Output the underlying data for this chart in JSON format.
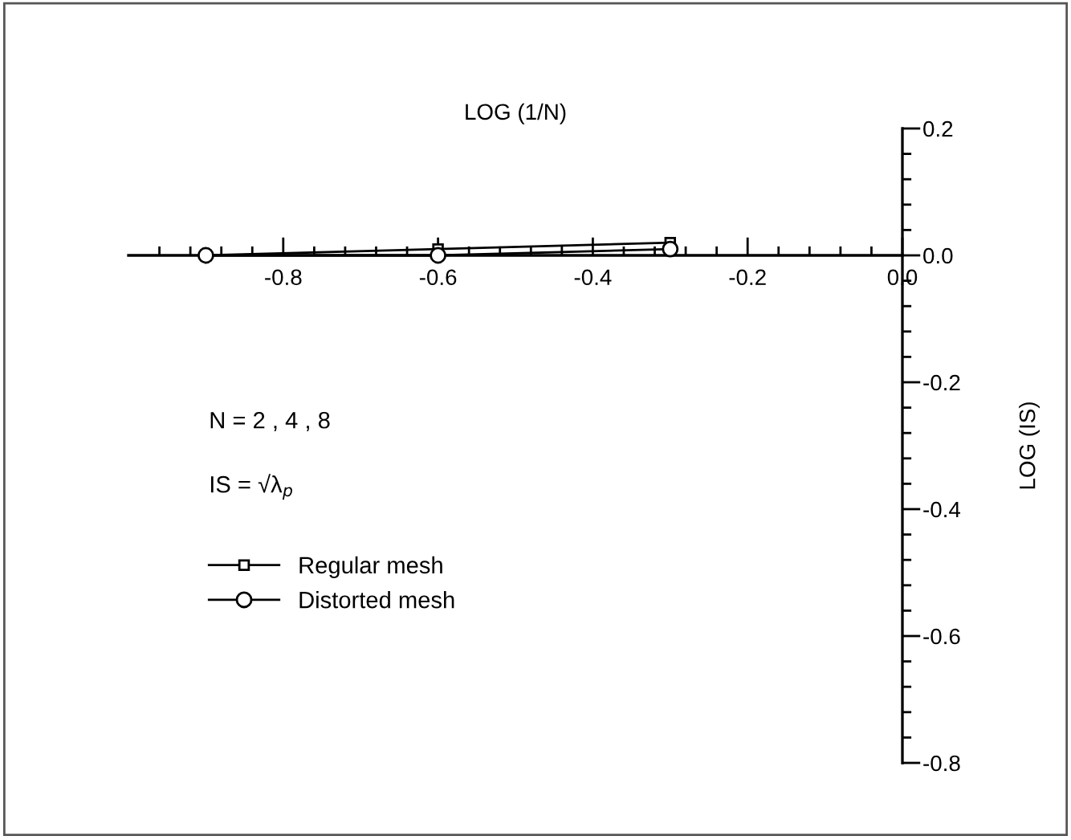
{
  "chart_data": {
    "type": "line",
    "xlabel": "LOG (1/N)",
    "ylabel": "LOG (IS)",
    "annotations": [
      "N = 2 , 4 , 8",
      "IS = √λ$_{p}$"
    ],
    "x": [
      -0.9,
      -0.6,
      -0.3
    ],
    "series": [
      {
        "name": "Regular mesh",
        "color": "#000000",
        "marker": "square",
        "values": [
          0.0,
          0.01,
          0.02
        ]
      },
      {
        "name": "Distorted mesh",
        "color": "#000000",
        "marker": "circle",
        "values": [
          0.0,
          0.0,
          0.01
        ]
      }
    ],
    "xlim": [
      -1.0,
      0
    ],
    "xticks": [
      {
        "value": -0.96,
        "label": null
      },
      {
        "value": -0.92,
        "label": null
      },
      {
        "value": -0.88,
        "label": null
      },
      {
        "value": -0.84,
        "label": null
      },
      -0.8,
      {
        "value": -0.76,
        "label": null
      },
      {
        "value": -0.72,
        "label": null
      },
      {
        "value": -0.68,
        "label": null
      },
      {
        "value": -0.64,
        "label": null
      },
      -0.6,
      {
        "value": -0.56,
        "label": null
      },
      {
        "value": -0.52,
        "label": null
      },
      {
        "value": -0.48,
        "label": null
      },
      {
        "value": -0.44,
        "label": null
      },
      -0.4,
      {
        "value": -0.36,
        "label": null
      },
      {
        "value": -0.32,
        "label": null
      },
      {
        "value": -0.28,
        "label": null
      },
      {
        "value": -0.24,
        "label": null
      },
      -0.2,
      {
        "value": -0.16,
        "label": null
      },
      {
        "value": -0.12,
        "label": null
      },
      {
        "value": -0.08,
        "label": null
      },
      {
        "value": -0.04,
        "label": null
      },
      {
        "value": 0,
        "label": "0.0"
      }
    ],
    "ylim": [
      -0.8,
      0.2
    ],
    "yticks": [
      0.2,
      {
        "value": 0.16,
        "label": null
      },
      {
        "value": 0.12,
        "label": null
      },
      {
        "value": 0.08,
        "label": null
      },
      {
        "value": 0.04,
        "label": null
      },
      {
        "value": 0,
        "label": "0.0"
      },
      {
        "value": -0.04,
        "label": null
      },
      {
        "value": -0.08,
        "label": null
      },
      {
        "value": -0.12,
        "label": null
      },
      {
        "value": -0.16,
        "label": null
      },
      -0.2,
      {
        "value": -0.24,
        "label": null
      },
      {
        "value": -0.28,
        "label": null
      },
      {
        "value": -0.32,
        "label": null
      },
      {
        "value": -0.36,
        "label": null
      },
      -0.4,
      {
        "value": -0.44,
        "label": null
      },
      {
        "value": -0.48,
        "label": null
      },
      {
        "value": -0.52,
        "label": null
      },
      {
        "value": -0.56,
        "label": null
      },
      -0.6,
      {
        "value": -0.64,
        "label": null
      },
      {
        "value": -0.68,
        "label": null
      },
      {
        "value": -0.72,
        "label": null
      },
      {
        "value": -0.76,
        "label": null
      },
      -0.8
    ],
    "legend": "left",
    "line_style": "solid"
  }
}
